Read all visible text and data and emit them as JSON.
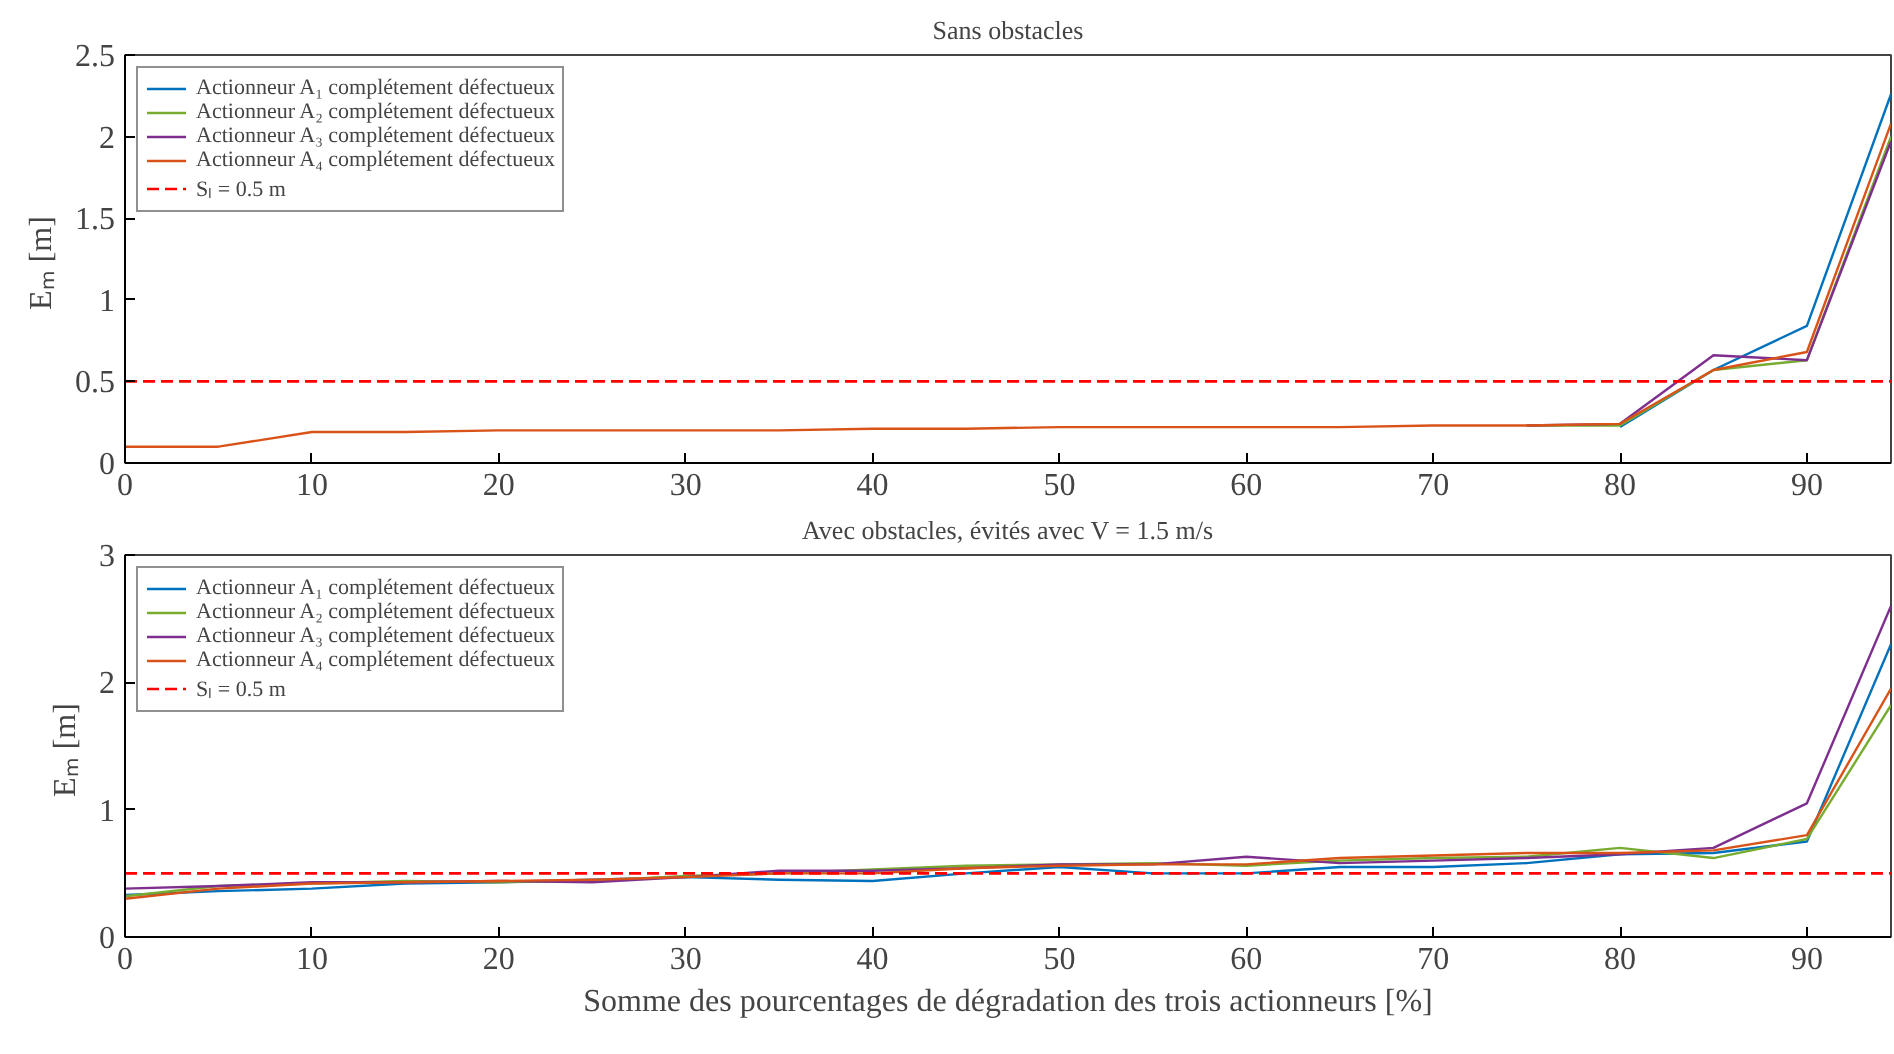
{
  "chart_data": [
    {
      "type": "line",
      "title": "Sans obstacles",
      "ylabel": "Eₘ  [m]",
      "x": [
        0,
        5,
        10,
        15,
        20,
        25,
        30,
        35,
        40,
        45,
        50,
        55,
        60,
        65,
        70,
        75,
        80,
        85,
        90,
        94.5
      ],
      "series": [
        {
          "name": "Actionneur A₁ complétement défectueux",
          "color": "#0072bd",
          "values": [
            null,
            null,
            null,
            null,
            null,
            null,
            null,
            null,
            null,
            null,
            null,
            null,
            null,
            null,
            null,
            null,
            0.22,
            0.57,
            0.84,
            2.26
          ]
        },
        {
          "name": "Actionneur A₂ complétement défectueux",
          "color": "#77ac30",
          "values": [
            null,
            null,
            null,
            null,
            null,
            null,
            null,
            null,
            null,
            null,
            null,
            null,
            null,
            null,
            null,
            0.23,
            0.23,
            0.57,
            0.63,
            2.0
          ]
        },
        {
          "name": "Actionneur A₃ complétement défectueux",
          "color": "#7e2f8e",
          "values": [
            null,
            null,
            null,
            null,
            null,
            null,
            null,
            null,
            null,
            null,
            null,
            null,
            null,
            null,
            null,
            0.23,
            0.24,
            0.66,
            0.63,
            1.97
          ]
        },
        {
          "name": "Actionneur A₄ complétement défectueux",
          "color": "#d95319",
          "values": [
            0.1,
            0.1,
            0.19,
            0.19,
            0.2,
            0.2,
            0.2,
            0.2,
            0.21,
            0.21,
            0.22,
            0.22,
            0.22,
            0.22,
            0.23,
            0.23,
            0.24,
            0.57,
            0.68,
            2.08
          ]
        }
      ],
      "ref_lines": [
        {
          "axis": "y",
          "value": 0.5,
          "label": "Sₗ = 0.5 m",
          "color": "#ff0000",
          "line_style": "dashed"
        }
      ],
      "xlim": [
        0,
        94.5
      ],
      "xticks": [
        0,
        10,
        20,
        30,
        40,
        50,
        60,
        70,
        80,
        90
      ],
      "ylim": [
        0,
        2.5
      ],
      "yticks": [
        0,
        0.5,
        1,
        1.5,
        2,
        2.5
      ],
      "grid": false,
      "legend": "top left"
    },
    {
      "type": "line",
      "title": "Avec obstacles, évités avec V = 1.5 m/s",
      "ylabel": "Eₘ  [m]",
      "xlabel": "Somme des pourcentages de dégradation des trois actionneurs [%]",
      "x": [
        0,
        5,
        10,
        15,
        20,
        25,
        30,
        35,
        40,
        45,
        50,
        55,
        60,
        65,
        70,
        75,
        80,
        85,
        90,
        94.5
      ],
      "series": [
        {
          "name": "Actionneur A₁ complétement défectueux",
          "color": "#0072bd",
          "values": [
            0.33,
            0.36,
            0.38,
            0.42,
            0.43,
            0.45,
            0.47,
            0.45,
            0.44,
            0.5,
            0.55,
            0.5,
            0.5,
            0.55,
            0.55,
            0.58,
            0.65,
            0.66,
            0.75,
            2.3
          ]
        },
        {
          "name": "Actionneur A₂ complétement défectueux",
          "color": "#77ac30",
          "values": [
            0.32,
            0.4,
            0.42,
            0.44,
            0.43,
            0.44,
            0.48,
            0.5,
            0.53,
            0.56,
            0.57,
            0.58,
            0.56,
            0.6,
            0.62,
            0.63,
            0.7,
            0.62,
            0.77,
            1.82
          ]
        },
        {
          "name": "Actionneur A₃ complétement défectueux",
          "color": "#7e2f8e",
          "values": [
            0.38,
            0.4,
            0.43,
            0.43,
            0.44,
            0.43,
            0.47,
            0.52,
            0.52,
            0.54,
            0.57,
            0.57,
            0.63,
            0.58,
            0.6,
            0.62,
            0.65,
            0.7,
            1.05,
            2.6
          ]
        },
        {
          "name": "Actionneur A₄ complétement défectueux",
          "color": "#d95319",
          "values": [
            0.3,
            0.38,
            0.42,
            0.43,
            0.44,
            0.45,
            0.47,
            0.5,
            0.5,
            0.54,
            0.56,
            0.57,
            0.57,
            0.62,
            0.64,
            0.66,
            0.66,
            0.68,
            0.8,
            1.95
          ]
        }
      ],
      "ref_lines": [
        {
          "axis": "y",
          "value": 0.5,
          "label": "Sₗ = 0.5 m",
          "color": "#ff0000",
          "line_style": "dashed"
        }
      ],
      "xlim": [
        0,
        94.5
      ],
      "xticks": [
        0,
        10,
        20,
        30,
        40,
        50,
        60,
        70,
        80,
        90
      ],
      "ylim": [
        0,
        3
      ],
      "yticks": [
        0,
        1,
        2,
        3
      ],
      "grid": false,
      "legend": "top left"
    }
  ]
}
